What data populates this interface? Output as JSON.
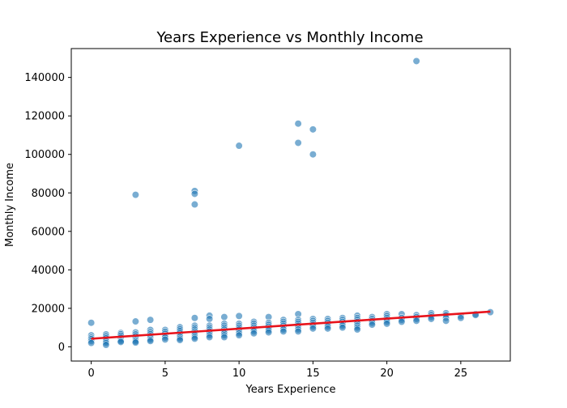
{
  "chart_data": {
    "type": "scatter",
    "title": "Years Experience vs Monthly Income",
    "xlabel": "Years Experience",
    "ylabel": "Monthly Income",
    "xlim": [
      -1.35,
      28.35
    ],
    "ylim": [
      -7400,
      155000
    ],
    "xticks": [
      0,
      5,
      10,
      15,
      20,
      25
    ],
    "yticks": [
      0,
      20000,
      40000,
      60000,
      80000,
      100000,
      120000,
      140000
    ],
    "grid": false,
    "legend": "none",
    "colors": {
      "points": "#1f77b4",
      "trend": "#e8141c"
    },
    "points": [
      [
        0,
        12500
      ],
      [
        0,
        6000
      ],
      [
        0,
        4800
      ],
      [
        0,
        4000
      ],
      [
        0,
        3000
      ],
      [
        0,
        2000
      ],
      [
        1,
        6500
      ],
      [
        1,
        5500
      ],
      [
        1,
        4500
      ],
      [
        1,
        3500
      ],
      [
        1,
        2800
      ],
      [
        1,
        2000
      ],
      [
        1,
        1000
      ],
      [
        2,
        7200
      ],
      [
        2,
        6600
      ],
      [
        2,
        5800
      ],
      [
        2,
        4800
      ],
      [
        2,
        3800
      ],
      [
        2,
        3000
      ],
      [
        2,
        2500
      ],
      [
        3,
        79000
      ],
      [
        3,
        13200
      ],
      [
        3,
        7500
      ],
      [
        3,
        6500
      ],
      [
        3,
        5500
      ],
      [
        3,
        4500
      ],
      [
        3,
        3500
      ],
      [
        3,
        2800
      ],
      [
        3,
        2200
      ],
      [
        4,
        14000
      ],
      [
        4,
        8800
      ],
      [
        4,
        7600
      ],
      [
        4,
        6600
      ],
      [
        4,
        5600
      ],
      [
        4,
        4600
      ],
      [
        4,
        3700
      ],
      [
        4,
        3000
      ],
      [
        5,
        8800
      ],
      [
        5,
        7800
      ],
      [
        5,
        6800
      ],
      [
        5,
        5800
      ],
      [
        5,
        4800
      ],
      [
        5,
        3800
      ],
      [
        6,
        10200
      ],
      [
        6,
        9200
      ],
      [
        6,
        8200
      ],
      [
        6,
        7200
      ],
      [
        6,
        6200
      ],
      [
        6,
        5200
      ],
      [
        6,
        4300
      ],
      [
        6,
        3500
      ],
      [
        7,
        81000
      ],
      [
        7,
        79500
      ],
      [
        7,
        74000
      ],
      [
        7,
        15000
      ],
      [
        7,
        11000
      ],
      [
        7,
        10000
      ],
      [
        7,
        9000
      ],
      [
        7,
        8000
      ],
      [
        7,
        7000
      ],
      [
        7,
        6000
      ],
      [
        7,
        5000
      ],
      [
        7,
        4200
      ],
      [
        8,
        16200
      ],
      [
        8,
        14500
      ],
      [
        8,
        11000
      ],
      [
        8,
        10000
      ],
      [
        8,
        9000
      ],
      [
        8,
        8000
      ],
      [
        8,
        7000
      ],
      [
        8,
        6000
      ],
      [
        8,
        5000
      ],
      [
        9,
        15500
      ],
      [
        9,
        12000
      ],
      [
        9,
        11000
      ],
      [
        9,
        10000
      ],
      [
        9,
        9000
      ],
      [
        9,
        8000
      ],
      [
        9,
        7000
      ],
      [
        9,
        6000
      ],
      [
        9,
        5000
      ],
      [
        10,
        104500
      ],
      [
        10,
        16000
      ],
      [
        10,
        12000
      ],
      [
        10,
        11000
      ],
      [
        10,
        10000
      ],
      [
        10,
        9000
      ],
      [
        10,
        8000
      ],
      [
        10,
        7000
      ],
      [
        10,
        6000
      ],
      [
        11,
        13000
      ],
      [
        11,
        12000
      ],
      [
        11,
        11000
      ],
      [
        11,
        10000
      ],
      [
        11,
        9000
      ],
      [
        11,
        8000
      ],
      [
        11,
        7000
      ],
      [
        12,
        15500
      ],
      [
        12,
        12500
      ],
      [
        12,
        11500
      ],
      [
        12,
        10500
      ],
      [
        12,
        9500
      ],
      [
        12,
        8500
      ],
      [
        12,
        7500
      ],
      [
        13,
        14000
      ],
      [
        13,
        13000
      ],
      [
        13,
        12000
      ],
      [
        13,
        11000
      ],
      [
        13,
        10000
      ],
      [
        13,
        9000
      ],
      [
        13,
        8000
      ],
      [
        14,
        116000
      ],
      [
        14,
        106000
      ],
      [
        14,
        17000
      ],
      [
        14,
        14000
      ],
      [
        14,
        13000
      ],
      [
        14,
        12000
      ],
      [
        14,
        11000
      ],
      [
        14,
        10000
      ],
      [
        14,
        9000
      ],
      [
        14,
        8000
      ],
      [
        15,
        113000
      ],
      [
        15,
        100000
      ],
      [
        15,
        14500
      ],
      [
        15,
        13500
      ],
      [
        15,
        12500
      ],
      [
        15,
        11500
      ],
      [
        15,
        10500
      ],
      [
        15,
        9500
      ],
      [
        16,
        14500
      ],
      [
        16,
        13500
      ],
      [
        16,
        12500
      ],
      [
        16,
        11500
      ],
      [
        16,
        10500
      ],
      [
        16,
        9500
      ],
      [
        17,
        15000
      ],
      [
        17,
        14000
      ],
      [
        17,
        13000
      ],
      [
        17,
        12000
      ],
      [
        17,
        11000
      ],
      [
        17,
        10000
      ],
      [
        18,
        16200
      ],
      [
        18,
        15000
      ],
      [
        18,
        14000
      ],
      [
        18,
        13000
      ],
      [
        18,
        12000
      ],
      [
        18,
        11000
      ],
      [
        18,
        10000
      ],
      [
        18,
        9000
      ],
      [
        19,
        15500
      ],
      [
        19,
        14500
      ],
      [
        19,
        13500
      ],
      [
        19,
        12500
      ],
      [
        19,
        11500
      ],
      [
        20,
        17000
      ],
      [
        20,
        16000
      ],
      [
        20,
        15000
      ],
      [
        20,
        14000
      ],
      [
        20,
        13000
      ],
      [
        20,
        12000
      ],
      [
        21,
        17000
      ],
      [
        21,
        15000
      ],
      [
        21,
        14000
      ],
      [
        21,
        13000
      ],
      [
        22,
        148500
      ],
      [
        22,
        16500
      ],
      [
        22,
        15500
      ],
      [
        22,
        14500
      ],
      [
        22,
        13500
      ],
      [
        23,
        17500
      ],
      [
        23,
        16500
      ],
      [
        23,
        15500
      ],
      [
        23,
        14500
      ],
      [
        24,
        17500
      ],
      [
        24,
        16500
      ],
      [
        24,
        15000
      ],
      [
        24,
        13500
      ],
      [
        25,
        16000
      ],
      [
        25,
        15000
      ],
      [
        26,
        17000
      ],
      [
        26,
        16500
      ],
      [
        27,
        18000
      ]
    ],
    "trend_line": {
      "x": [
        0,
        27
      ],
      "y": [
        4200,
        18300
      ]
    }
  }
}
